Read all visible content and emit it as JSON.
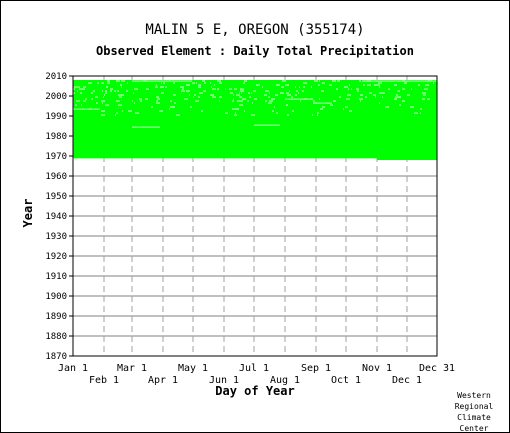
{
  "chart_data": {
    "type": "heatmap",
    "title": "MALIN 5 E, OREGON   (355174)",
    "subtitle": "Observed Element : Daily Total Precipitation",
    "xlabel": "Day of Year",
    "ylabel": "Year",
    "ylim": [
      1870,
      2010
    ],
    "yticks": [
      "1870",
      "1880",
      "1890",
      "1900",
      "1910",
      "1920",
      "1930",
      "1940",
      "1950",
      "1960",
      "1970",
      "1980",
      "1990",
      "2000",
      "2010"
    ],
    "xticks_upper": [
      "Jan 1",
      "Mar 1",
      "May 1",
      "Jul 1",
      "Sep 1",
      "Nov 1",
      "Dec 31"
    ],
    "xticks_lower": [
      "Feb 1",
      "Apr 1",
      "Jun 1",
      "Aug 1",
      "Oct 1",
      "Dec 1"
    ],
    "month_start_days": [
      1,
      32,
      60,
      91,
      121,
      152,
      182,
      213,
      244,
      274,
      305,
      335
    ],
    "xlim": [
      1,
      365
    ],
    "grid": true,
    "series": [
      {
        "start_year": 1969,
        "end_year": 2007,
        "first_day": 1,
        "last_day": 365,
        "color": "#00ff00"
      }
    ],
    "gaps": [
      {
        "year": 1993,
        "from_day": 1,
        "to_day": 28
      },
      {
        "year": 1984,
        "from_day": 60,
        "to_day": 88
      },
      {
        "year": 1985,
        "from_day": 182,
        "to_day": 208
      },
      {
        "year": 1998,
        "from_day": 213,
        "to_day": 240
      },
      {
        "year": 1996,
        "from_day": 244,
        "to_day": 260
      },
      {
        "year": 1968,
        "from_day": 1,
        "to_day": 305
      },
      {
        "year": 2007,
        "from_day": 60,
        "to_day": 120
      },
      {
        "year": 2007,
        "from_day": 290,
        "to_day": 365
      }
    ]
  },
  "credit": [
    "Western",
    "Regional",
    "Climate",
    "Center"
  ],
  "colors": {
    "data": "#00ff00",
    "grid_major": "#808080",
    "grid_minor": "#a0a0a0",
    "axis": "#000000"
  }
}
